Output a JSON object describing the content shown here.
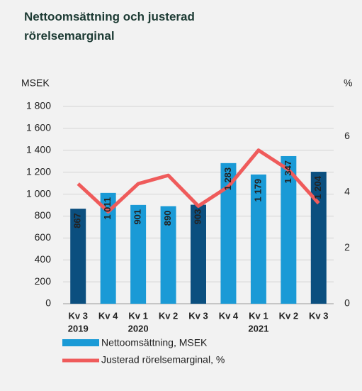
{
  "chart_data": {
    "type": "bar_line",
    "title": "Nettoomsättning och justerad rörelsemarginal",
    "ylabel": "MSEK",
    "y2label": "%",
    "categories": [
      "Kv 3",
      "Kv 4",
      "Kv 1",
      "Kv 2",
      "Kv 3",
      "Kv 4",
      "Kv 1",
      "Kv 2",
      "Kv 3"
    ],
    "years": [
      "2019",
      null,
      "2020",
      null,
      null,
      null,
      "2021",
      null,
      null
    ],
    "series": [
      {
        "name": "Nettoomsättning, MSEK",
        "color": "#1a9ad6",
        "bar_colors": [
          "#0b4f7f",
          "#1a9ad6",
          "#1a9ad6",
          "#1a9ad6",
          "#0b4f7f",
          "#1a9ad6",
          "#1a9ad6",
          "#1a9ad6",
          "#0b4f7f"
        ],
        "values": [
          867,
          1011,
          901,
          890,
          903,
          1283,
          1179,
          1347,
          1204
        ],
        "value_labels": [
          "867",
          "1 011",
          "901",
          "890",
          "903",
          "1 283",
          "1 179",
          "1 347",
          "1 204"
        ]
      },
      {
        "name": "Justerad rörelsemarginal, %",
        "color": "#ef5b5b",
        "axis": "y2",
        "values": [
          4.3,
          3.3,
          4.3,
          4.6,
          3.5,
          4.2,
          5.5,
          4.8,
          3.6
        ]
      }
    ],
    "ylim": [
      0,
      1800
    ],
    "yticks": [
      0,
      200,
      400,
      600,
      800,
      {
        "value": 1000,
        "label": "1 000"
      },
      {
        "value": 1200,
        "label": "1 200"
      },
      {
        "value": 1400,
        "label": "1 400"
      },
      {
        "value": 1600,
        "label": "1 600"
      },
      {
        "value": 1800,
        "label": "1 800"
      }
    ],
    "y2lim": [
      0,
      7.07
    ],
    "y2ticks": [
      0,
      2,
      4,
      6
    ],
    "grid": true
  }
}
